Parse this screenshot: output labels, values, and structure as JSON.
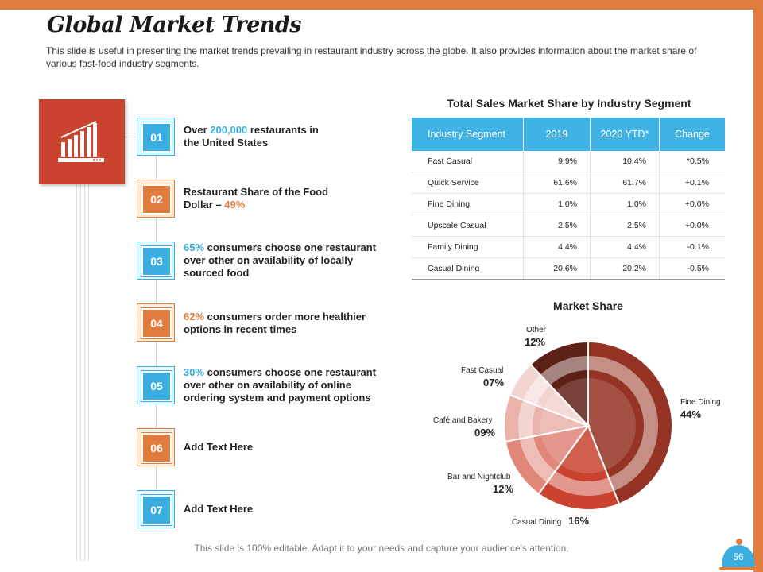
{
  "title": "Global Market Trends",
  "subtitle": "This slide is useful in presenting the market trends prevailing  in restaurant industry across the globe. It also provides  information  about the market share of various fast-food industry segments.",
  "steps": [
    {
      "num": "01",
      "pre": "Over ",
      "hl": "200,000",
      "post": " restaurants in the United States"
    },
    {
      "num": "02",
      "pre": "Restaurant Share of the Food Dollar – ",
      "hl": "49%",
      "post": ""
    },
    {
      "num": "03",
      "pre": "",
      "hl": "65%",
      "post": " consumers  choose  one restaurant over other on availability of locally sourced food"
    },
    {
      "num": "04",
      "pre": "",
      "hl": "62%",
      "post": " consumers  order more healthier options  in recent times"
    },
    {
      "num": "05",
      "pre": "",
      "hl": "30%",
      "post": " consumers  choose  one restaurant over other on availability of online ordering system  and payment options"
    },
    {
      "num": "06",
      "pre": "Add Text Here",
      "hl": "",
      "post": ""
    },
    {
      "num": "07",
      "pre": "Add Text Here",
      "hl": "",
      "post": ""
    }
  ],
  "table": {
    "title": "Total Sales Market Share by Industry Segment",
    "headers": [
      "Industry Segment",
      "2019",
      "2020 YTD*",
      "Change"
    ],
    "rows": [
      [
        "Fast Casual",
        "9.9%",
        "10.4%",
        "*0.5%"
      ],
      [
        "Quick Service",
        "61.6%",
        "61.7%",
        "+0.1%"
      ],
      [
        "Fine Dining",
        "1.0%",
        "1.0%",
        "+0.0%"
      ],
      [
        "Upscale Casual",
        "2.5%",
        "2.5%",
        "+0.0%"
      ],
      [
        "Family Dining",
        "4.4%",
        "4.4%",
        "-0.1%"
      ],
      [
        "Casual Dining",
        "20.6%",
        "20.2%",
        "-0.5%"
      ]
    ]
  },
  "chart_data": {
    "type": "pie",
    "title": "Market Share",
    "categories": [
      "Fine Dining",
      "Casual Dining",
      "Bar and Nightclub",
      "Café and Bakery",
      "Fast Casual",
      "Other"
    ],
    "values": [
      44,
      16,
      12,
      9,
      7,
      12
    ],
    "labels": [
      "44%",
      "16%",
      "12%",
      "09%",
      "07%",
      "12%"
    ],
    "colors": [
      "#953324",
      "#c9432f",
      "#e0877a",
      "#eab3aa",
      "#f3d5d0",
      "#5e2118"
    ],
    "legend": "none"
  },
  "footer": "This slide is 100% editable. Adapt it to your needs and capture your audience's attention.",
  "page_number": "56",
  "colors": {
    "accent_orange": "#e07d3e",
    "accent_blue": "#3aaee0",
    "icon_red": "#c9432f"
  }
}
